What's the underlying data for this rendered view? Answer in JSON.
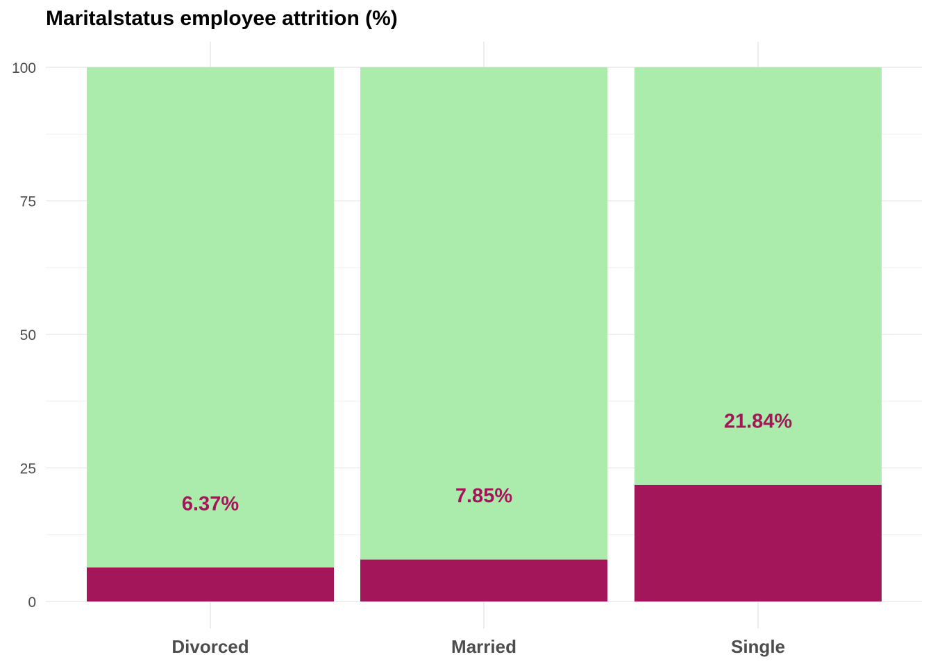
{
  "chart_data": {
    "type": "bar",
    "stacked": true,
    "title": "Maritalstatus employee attrition (%)",
    "xlabel": "",
    "ylabel": "",
    "ylim": [
      0,
      100
    ],
    "yticks": [
      0,
      25,
      50,
      75,
      100
    ],
    "grid": true,
    "legend": "none",
    "categories": [
      "Divorced",
      "Married",
      "Single"
    ],
    "series": [
      {
        "values": [
          6.37,
          7.85,
          21.84
        ],
        "color": "#a3175a"
      },
      {
        "values": [
          93.63,
          92.15,
          78.16
        ],
        "color": "#abebab"
      }
    ],
    "data_labels": [
      "6.37%",
      "7.85%",
      "21.84%"
    ],
    "label_color": "#a3175a"
  }
}
